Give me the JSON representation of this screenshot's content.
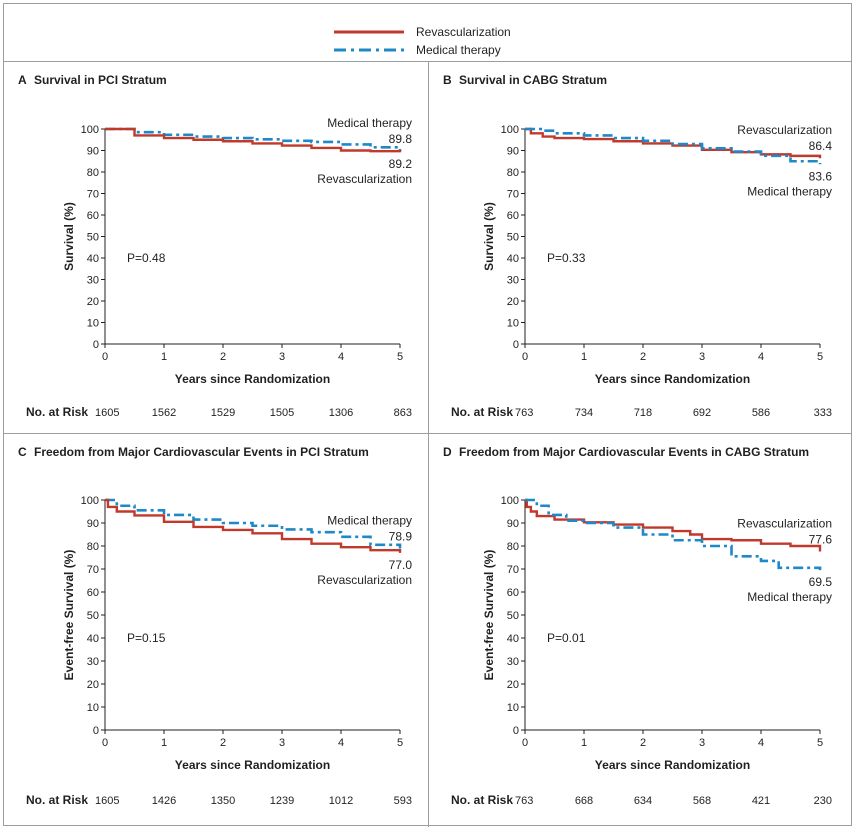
{
  "legend": {
    "revasc_label": "Revascularization",
    "medical_label": "Medical therapy",
    "revasc_color": "#c0392b",
    "medical_color": "#1e88c8"
  },
  "chart_data": [
    {
      "type": "line",
      "panel_letter": "A",
      "title": "Survival in PCI Stratum",
      "xlabel": "Years since Randomization",
      "ylabel": "Survival (%)",
      "xlim": [
        0,
        5
      ],
      "ylim": [
        0,
        100
      ],
      "x_ticks": [
        0,
        1,
        2,
        3,
        4,
        5
      ],
      "y_ticks": [
        0,
        10,
        20,
        30,
        40,
        50,
        60,
        70,
        80,
        90,
        100
      ],
      "p_value": "P=0.48",
      "series": [
        {
          "name": "Medical therapy",
          "style": "dash-dot",
          "x": [
            0,
            0.5,
            1,
            1.5,
            2,
            2.5,
            3,
            3.5,
            4,
            4.5,
            5
          ],
          "y": [
            100,
            98.5,
            97.3,
            96.5,
            95.8,
            95.2,
            94.5,
            94.0,
            92.8,
            91.5,
            89.8
          ],
          "end_value": "89.8"
        },
        {
          "name": "Revascularization",
          "style": "solid",
          "x": [
            0,
            0.5,
            1,
            1.5,
            2,
            2.5,
            3,
            3.5,
            4,
            4.5,
            5
          ],
          "y": [
            100,
            97.0,
            95.8,
            95.0,
            94.3,
            93.3,
            92.3,
            91.2,
            90.0,
            89.7,
            89.2
          ],
          "end_value": "89.2"
        }
      ],
      "annotations": {
        "upper_label": "Medical therapy",
        "upper_value": "89.8",
        "lower_value": "89.2",
        "lower_label": "Revascularization"
      },
      "at_risk": {
        "label": "No. at Risk",
        "values": [
          "1605",
          "1562",
          "1529",
          "1505",
          "1306",
          "863"
        ]
      }
    },
    {
      "type": "line",
      "panel_letter": "B",
      "title": "Survival in CABG Stratum",
      "xlabel": "Years since Randomization",
      "ylabel": "Survival (%)",
      "xlim": [
        0,
        5
      ],
      "ylim": [
        0,
        100
      ],
      "x_ticks": [
        0,
        1,
        2,
        3,
        4,
        5
      ],
      "y_ticks": [
        0,
        10,
        20,
        30,
        40,
        50,
        60,
        70,
        80,
        90,
        100
      ],
      "p_value": "P=0.33",
      "series": [
        {
          "name": "Revascularization",
          "style": "solid",
          "x": [
            0,
            0.1,
            0.3,
            0.5,
            1,
            1.5,
            2,
            2.5,
            3,
            3.5,
            4,
            4.5,
            5
          ],
          "y": [
            100,
            98,
            96.5,
            95.8,
            95.3,
            94.3,
            93.3,
            92.3,
            90.3,
            89.2,
            88.2,
            87.5,
            86.4
          ],
          "end_value": "86.4"
        },
        {
          "name": "Medical therapy",
          "style": "dash-dot",
          "x": [
            0,
            0.3,
            0.5,
            1,
            1.5,
            2,
            2.5,
            3,
            3.5,
            4,
            4.5,
            5
          ],
          "y": [
            100,
            99.2,
            98.0,
            97.0,
            95.8,
            94.5,
            93.0,
            91.0,
            89.5,
            87.5,
            85.0,
            83.6
          ],
          "end_value": "83.6"
        }
      ],
      "annotations": {
        "upper_label": "Revascularization",
        "upper_value": "86.4",
        "lower_value": "83.6",
        "lower_label": "Medical therapy"
      },
      "at_risk": {
        "label": "No. at Risk",
        "values": [
          "763",
          "734",
          "718",
          "692",
          "586",
          "333"
        ]
      }
    },
    {
      "type": "line",
      "panel_letter": "C",
      "title": "Freedom from Major Cardiovascular Events in PCI Stratum",
      "xlabel": "Years since Randomization",
      "ylabel": "Event-free Survival (%)",
      "xlim": [
        0,
        5
      ],
      "ylim": [
        0,
        100
      ],
      "x_ticks": [
        0,
        1,
        2,
        3,
        4,
        5
      ],
      "y_ticks": [
        0,
        10,
        20,
        30,
        40,
        50,
        60,
        70,
        80,
        90,
        100
      ],
      "p_value": "P=0.15",
      "series": [
        {
          "name": "Medical therapy",
          "style": "dash-dot",
          "x": [
            0,
            0.2,
            0.5,
            1,
            1.5,
            2,
            2.5,
            3,
            3.5,
            4,
            4.5,
            5
          ],
          "y": [
            100,
            97.5,
            95.5,
            93.5,
            91.5,
            90.0,
            88.8,
            87.2,
            86.0,
            84.0,
            80.5,
            78.9
          ],
          "end_value": "78.9"
        },
        {
          "name": "Revascularization",
          "style": "solid",
          "x": [
            0,
            0.05,
            0.2,
            0.5,
            1,
            1.5,
            2,
            2.5,
            3,
            3.5,
            4,
            4.5,
            5
          ],
          "y": [
            100,
            97,
            95.0,
            93.3,
            90.5,
            88.3,
            87.0,
            85.5,
            83.0,
            81.0,
            79.5,
            78.2,
            77.0
          ],
          "end_value": "77.0"
        }
      ],
      "annotations": {
        "upper_label": "Medical therapy",
        "upper_value": "78.9",
        "lower_value": "77.0",
        "lower_label": "Revascularization"
      },
      "at_risk": {
        "label": "No. at Risk",
        "values": [
          "1605",
          "1426",
          "1350",
          "1239",
          "1012",
          "593"
        ]
      }
    },
    {
      "type": "line",
      "panel_letter": "D",
      "title": "Freedom from Major Cardiovascular Events in CABG Stratum",
      "xlabel": "Years since Randomization",
      "ylabel": "Event-free Survival (%)",
      "xlim": [
        0,
        5
      ],
      "ylim": [
        0,
        100
      ],
      "x_ticks": [
        0,
        1,
        2,
        3,
        4,
        5
      ],
      "y_ticks": [
        0,
        10,
        20,
        30,
        40,
        50,
        60,
        70,
        80,
        90,
        100
      ],
      "p_value": "P=0.01",
      "series": [
        {
          "name": "Revascularization",
          "style": "solid",
          "x": [
            0,
            0.03,
            0.1,
            0.2,
            0.5,
            1,
            1.5,
            2,
            2.5,
            2.8,
            3,
            3.5,
            4,
            4.5,
            5
          ],
          "y": [
            100,
            97,
            95,
            93,
            91.5,
            90.3,
            89.3,
            88.0,
            86.5,
            85.0,
            83.0,
            82.5,
            81.0,
            80.0,
            77.6
          ],
          "end_value": "77.6"
        },
        {
          "name": "Medical therapy",
          "style": "dash-dot",
          "x": [
            0,
            0.2,
            0.4,
            0.7,
            1,
            1.5,
            2,
            2.5,
            3,
            3.5,
            4,
            4.3,
            5
          ],
          "y": [
            100,
            97.5,
            93.5,
            91.0,
            90.0,
            88.0,
            85.0,
            82.5,
            80.0,
            75.5,
            73.5,
            70.5,
            69.5
          ],
          "end_value": "69.5"
        }
      ],
      "annotations": {
        "upper_label": "Revascularization",
        "upper_value": "77.6",
        "lower_value": "69.5",
        "lower_label": "Medical therapy"
      },
      "at_risk": {
        "label": "No. at Risk",
        "values": [
          "763",
          "668",
          "634",
          "568",
          "421",
          "230"
        ]
      }
    }
  ]
}
